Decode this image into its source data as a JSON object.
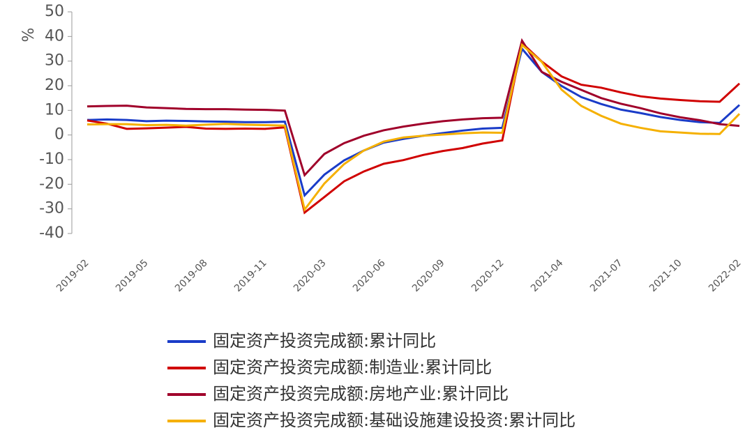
{
  "chart_data": {
    "type": "line",
    "y_label": "%",
    "categories": [
      "2019-02",
      null,
      null,
      "2019-05",
      null,
      null,
      "2019-08",
      null,
      null,
      "2019-11",
      null,
      null,
      "2020-03",
      null,
      null,
      "2020-06",
      null,
      null,
      "2020-09",
      null,
      null,
      "2020-12",
      null,
      null,
      "2021-04",
      null,
      null,
      "2021-07",
      null,
      null,
      "2021-10",
      null,
      null,
      "2022-02"
    ],
    "ylim": [
      -40,
      50
    ],
    "yticks": [
      -40,
      -30,
      -20,
      -10,
      0,
      10,
      20,
      30,
      40,
      50
    ],
    "series": [
      {
        "name": "固定资产投资完成额:累计同比",
        "color": "#1a3cc8",
        "values": [
          6.1,
          6.3,
          6.1,
          5.6,
          5.8,
          5.7,
          5.5,
          5.4,
          5.2,
          5.2,
          5.4,
          -24.5,
          -16.1,
          -10.3,
          -6.3,
          -3.1,
          -1.6,
          -0.3,
          0.8,
          1.8,
          2.6,
          2.9,
          35.0,
          25.6,
          19.9,
          15.4,
          12.6,
          10.3,
          8.9,
          7.3,
          6.1,
          5.2,
          4.9,
          12.2
        ]
      },
      {
        "name": "固定资产投资完成额:制造业:累计同比",
        "color": "#d00000",
        "values": [
          5.9,
          4.6,
          2.5,
          2.7,
          3.0,
          3.3,
          2.6,
          2.5,
          2.6,
          2.5,
          3.1,
          -31.5,
          -25.2,
          -18.8,
          -14.8,
          -11.7,
          -10.2,
          -8.1,
          -6.5,
          -5.3,
          -3.5,
          -2.2,
          37.3,
          29.8,
          23.8,
          20.4,
          19.2,
          17.3,
          15.7,
          14.8,
          14.2,
          13.7,
          13.5,
          20.9
        ]
      },
      {
        "name": "固定资产投资完成额:房地产业:累计同比",
        "color": "#a0002a",
        "values": [
          11.6,
          11.8,
          11.9,
          11.2,
          10.9,
          10.6,
          10.5,
          10.5,
          10.3,
          10.2,
          9.9,
          -16.3,
          -7.7,
          -3.3,
          -0.3,
          1.9,
          3.4,
          4.6,
          5.6,
          6.3,
          6.8,
          7.0,
          38.3,
          25.6,
          21.6,
          18.3,
          15.0,
          12.7,
          10.9,
          8.8,
          7.2,
          6.0,
          4.4,
          3.7
        ]
      },
      {
        "name": "固定资产投资完成额:基础设施建设投资:累计同比",
        "color": "#f5b000",
        "values": [
          4.3,
          4.4,
          4.4,
          4.0,
          4.1,
          3.8,
          4.2,
          4.5,
          4.2,
          4.0,
          3.8,
          -30.3,
          -19.7,
          -11.8,
          -6.3,
          -2.7,
          -1.0,
          -0.3,
          0.2,
          0.7,
          1.0,
          0.9,
          36.6,
          29.7,
          18.4,
          11.8,
          7.8,
          4.6,
          2.9,
          1.5,
          1.0,
          0.5,
          0.4,
          8.6
        ]
      }
    ]
  }
}
